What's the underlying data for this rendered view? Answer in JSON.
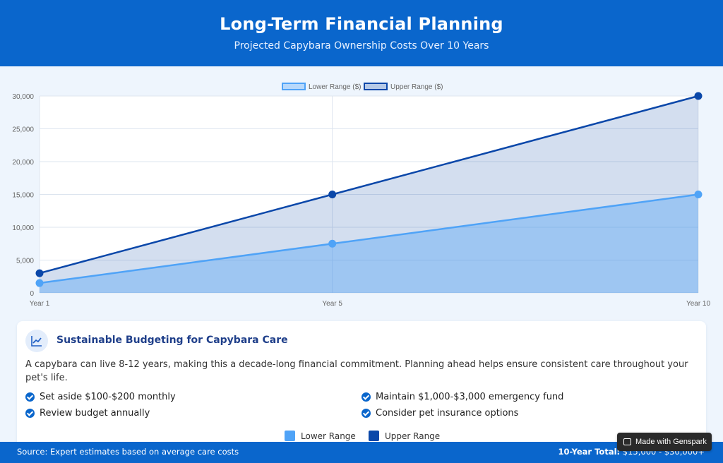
{
  "header": {
    "title": "Long-Term Financial Planning",
    "subtitle": "Projected Capybara Ownership Costs Over 10 Years"
  },
  "chart_data": {
    "type": "area",
    "categories": [
      "Year 1",
      "Year 5",
      "Year 10"
    ],
    "x": [
      1,
      5,
      10
    ],
    "series": [
      {
        "name": "Lower Range ($)",
        "values": [
          1500,
          7500,
          15000
        ],
        "color": "#4fa3f7"
      },
      {
        "name": "Upper Range ($)",
        "values": [
          3000,
          15000,
          30000
        ],
        "color": "#0a47a9"
      }
    ],
    "yticks": [
      "0",
      "5,000",
      "10,000",
      "15,000",
      "20,000",
      "25,000",
      "30,000"
    ],
    "ylim": [
      0,
      30000
    ],
    "grid": true,
    "legend_position": "top-center"
  },
  "card": {
    "icon": "chart-line-icon",
    "title": "Sustainable Budgeting for Capybara Care",
    "description": "A capybara can live 8-12 years, making this a decade-long financial commitment. Planning ahead helps ensure consistent care throughout your pet's life.",
    "tips": [
      "Set aside $100-$200 monthly",
      "Maintain $1,000-$3,000 emergency fund",
      "Review budget annually",
      "Consider pet insurance options"
    ]
  },
  "legend_bottom": {
    "lower": "Lower Range",
    "upper": "Upper Range"
  },
  "footer": {
    "source": "Source: Expert estimates based on average care costs",
    "total_label": "10-Year Total:",
    "total_value": "$15,000 - $30,000+"
  },
  "badge": {
    "label": "Made with Genspark"
  }
}
